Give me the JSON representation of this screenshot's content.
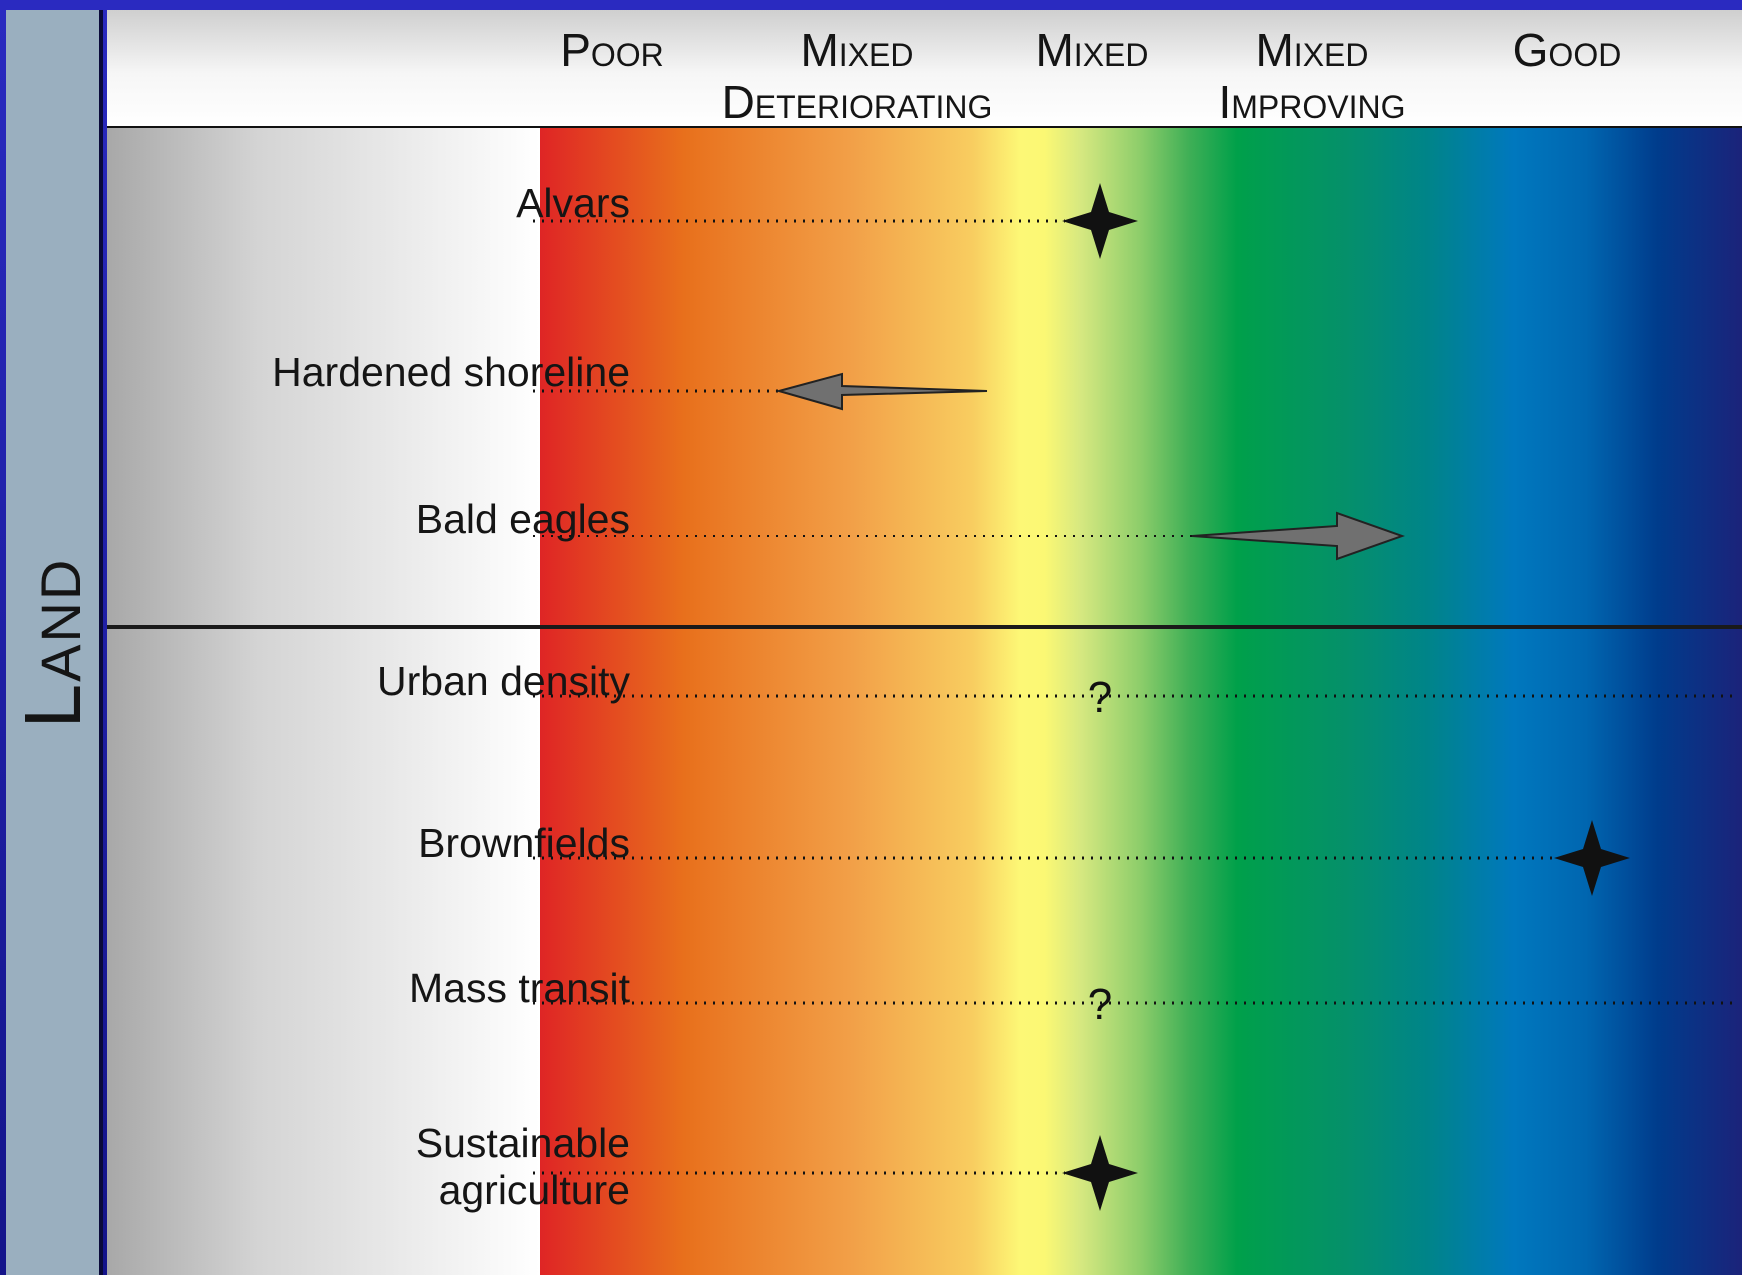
{
  "side_label": "Land",
  "scale": [
    "Poor",
    "Mixed\nDeteriorating",
    "Mixed",
    "Mixed\nImproving",
    "Good"
  ],
  "scale_colors": {
    "poor": "#df2525",
    "mixed": "#fdf876",
    "good": "#1b237a"
  },
  "indicators": [
    {
      "label": "Alvars",
      "status": "Mixed",
      "symbol": "star"
    },
    {
      "label": "Hardened shoreline",
      "status": "Mixed Deteriorating",
      "symbol": "arrow-left",
      "trend": "deteriorating"
    },
    {
      "label": "Bald eagles",
      "status": "Mixed Improving",
      "symbol": "arrow-right",
      "trend": "improving"
    },
    {
      "label": "Urban density",
      "status": "Mixed",
      "symbol": "?"
    },
    {
      "label": "Brownfields",
      "status": "Good",
      "symbol": "star"
    },
    {
      "label": "Mass transit",
      "status": "Mixed",
      "symbol": "?"
    },
    {
      "label": "Sustainable\nagriculture",
      "status": "Mixed",
      "symbol": "star"
    }
  ]
}
